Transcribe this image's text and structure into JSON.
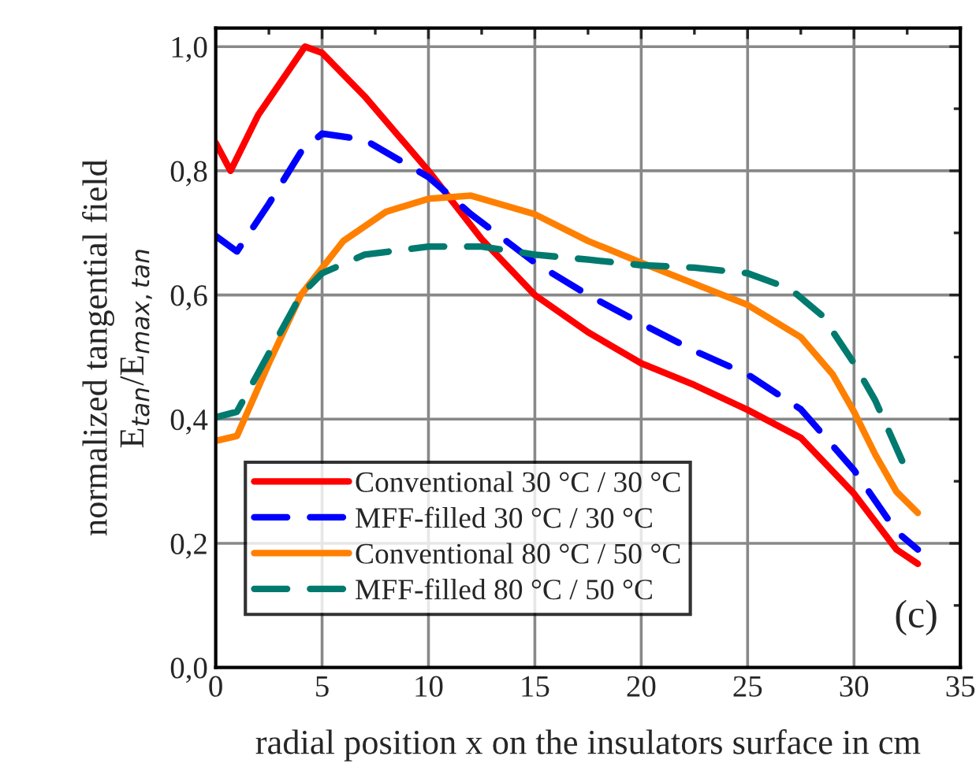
{
  "chart_data": {
    "type": "line",
    "xlabel": "radial position x on the insulators surface in cm",
    "ylabel": "normalized tangential field\nE$_{tan}$/E$_{max,tan}$",
    "annotations": [
      "(c)"
    ],
    "xlim": [
      0,
      35
    ],
    "xticks": [
      0,
      5,
      10,
      15,
      20,
      25,
      30,
      35
    ],
    "ylim": [
      0,
      1.03
    ],
    "yticks": [
      {
        "value": 0,
        "label": "0,0"
      },
      {
        "value": 0.2,
        "label": "0,2"
      },
      {
        "value": 0.4,
        "label": "0,4"
      },
      {
        "value": 0.6,
        "label": "0,6"
      },
      {
        "value": 0.8,
        "label": "0,8"
      },
      {
        "value": 1.0,
        "label": "1,0"
      }
    ],
    "grid": true,
    "legend": "bottom left",
    "marker": "none",
    "series": [
      {
        "name": "Conventional 30 °C / 30 °C",
        "color": "#ff0000",
        "line_style": "solid",
        "x": [
          0,
          0.7,
          2,
          4.2,
          5,
          7,
          10,
          12.5,
          15,
          17.5,
          20,
          22.5,
          25,
          27.5,
          30,
          32,
          33
        ],
        "values": [
          0.845,
          0.8,
          0.89,
          1.0,
          0.99,
          0.92,
          0.8,
          0.69,
          0.6,
          0.54,
          0.49,
          0.455,
          0.415,
          0.37,
          0.28,
          0.19,
          0.167
        ]
      },
      {
        "name": "MFF-filled 30 °C / 30 °C",
        "color": "#0000ff",
        "line_style": "dashed",
        "x": [
          0,
          1,
          2.5,
          4,
          5,
          7,
          9,
          10,
          12,
          15,
          17.5,
          20,
          22.5,
          25,
          27.5,
          30,
          32,
          33
        ],
        "values": [
          0.695,
          0.67,
          0.747,
          0.83,
          0.86,
          0.85,
          0.81,
          0.79,
          0.73,
          0.652,
          0.6,
          0.554,
          0.51,
          0.472,
          0.416,
          0.318,
          0.219,
          0.19
        ]
      },
      {
        "name": "Conventional 80 °C / 50 °C",
        "color": "#ff8000",
        "line_style": "solid",
        "x": [
          0,
          1,
          2.5,
          4,
          6,
          8,
          10,
          12,
          15,
          17.5,
          20,
          22.5,
          25,
          27.5,
          29,
          30,
          31,
          32,
          33
        ],
        "values": [
          0.365,
          0.373,
          0.49,
          0.6,
          0.687,
          0.734,
          0.755,
          0.76,
          0.73,
          0.687,
          0.652,
          0.618,
          0.584,
          0.532,
          0.472,
          0.412,
          0.343,
          0.283,
          0.249
        ]
      },
      {
        "name": "MFF-filled 80 °C / 50 °C",
        "color": "#007a6e",
        "line_style": "dashed",
        "x": [
          0,
          1,
          2.5,
          4,
          5,
          7,
          10,
          12.5,
          15,
          17.5,
          20,
          22.5,
          25,
          27,
          28.5,
          30,
          31,
          32.3
        ],
        "values": [
          0.403,
          0.412,
          0.506,
          0.6,
          0.635,
          0.665,
          0.678,
          0.678,
          0.665,
          0.657,
          0.648,
          0.644,
          0.635,
          0.61,
          0.567,
          0.49,
          0.43,
          0.33
        ]
      }
    ]
  }
}
